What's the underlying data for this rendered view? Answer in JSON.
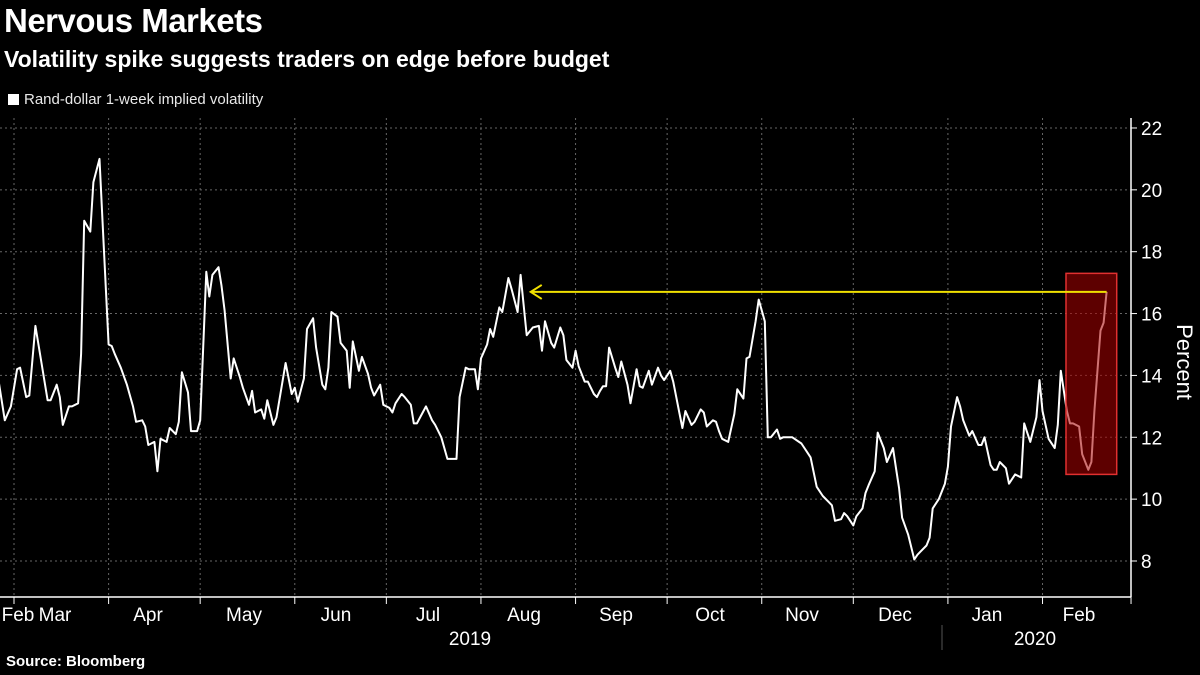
{
  "title": "Nervous Markets",
  "subtitle": "Volatility spike suggests traders on edge before budget",
  "source": "Source: Bloomberg",
  "colors": {
    "background": "#000000",
    "line": "#ffffff",
    "arrow": "#f0e000",
    "highlight_fill": "#8b0000",
    "highlight_border": "#e03030",
    "grid": "#666666"
  },
  "chart_data": {
    "type": "line",
    "title": "Nervous Markets",
    "subtitle": "Volatility spike suggests traders on edge before budget",
    "ylabel": "Percent",
    "ylim": [
      7,
      22.3
    ],
    "y_ticks": [
      8,
      10,
      12,
      14,
      16,
      18,
      20,
      22
    ],
    "y_axis_side": "right",
    "x_tick_labels": [
      "Feb",
      "Mar",
      "Apr",
      "May",
      "Jun",
      "Jul",
      "Aug",
      "Sep",
      "Oct",
      "Nov",
      "Dec",
      "Jan",
      "Feb"
    ],
    "x_year_labels": [
      "2019",
      "2020"
    ],
    "grid": true,
    "legend_position": "top-left",
    "series": [
      {
        "name": "Rand-dollar 1-week implied volatility",
        "points": [
          [
            "2019-02-24",
            13.8
          ],
          [
            "2019-02-26",
            12.55
          ],
          [
            "2019-02-28",
            13.0
          ],
          [
            "2019-03-01",
            13.6
          ],
          [
            "2019-03-02",
            14.2
          ],
          [
            "2019-03-03",
            14.25
          ],
          [
            "2019-03-05",
            13.3
          ],
          [
            "2019-03-06",
            13.35
          ],
          [
            "2019-03-08",
            15.6
          ],
          [
            "2019-03-10",
            14.4
          ],
          [
            "2019-03-12",
            13.2
          ],
          [
            "2019-03-13",
            13.2
          ],
          [
            "2019-03-15",
            13.7
          ],
          [
            "2019-03-16",
            13.3
          ],
          [
            "2019-03-17",
            12.4
          ],
          [
            "2019-03-19",
            13.0
          ],
          [
            "2019-03-20",
            13.0
          ],
          [
            "2019-03-22",
            13.1
          ],
          [
            "2019-03-23",
            14.7
          ],
          [
            "2019-03-24",
            19.0
          ],
          [
            "2019-03-26",
            18.65
          ],
          [
            "2019-03-27",
            20.25
          ],
          [
            "2019-03-29",
            21.0
          ],
          [
            "2019-03-30",
            19.0
          ],
          [
            "2019-04-01",
            15.0
          ],
          [
            "2019-04-02",
            14.95
          ],
          [
            "2019-04-03",
            14.7
          ],
          [
            "2019-04-05",
            14.25
          ],
          [
            "2019-04-07",
            13.7
          ],
          [
            "2019-04-09",
            13.0
          ],
          [
            "2019-04-10",
            12.5
          ],
          [
            "2019-04-12",
            12.55
          ],
          [
            "2019-04-13",
            12.35
          ],
          [
            "2019-04-14",
            11.75
          ],
          [
            "2019-04-16",
            11.85
          ],
          [
            "2019-04-17",
            10.9
          ],
          [
            "2019-04-18",
            11.95
          ],
          [
            "2019-04-20",
            11.85
          ],
          [
            "2019-04-21",
            12.3
          ],
          [
            "2019-04-23",
            12.1
          ],
          [
            "2019-04-24",
            12.5
          ],
          [
            "2019-04-25",
            14.1
          ],
          [
            "2019-04-27",
            13.45
          ],
          [
            "2019-04-28",
            12.2
          ],
          [
            "2019-04-30",
            12.2
          ],
          [
            "2019-05-01",
            12.55
          ],
          [
            "2019-05-03",
            17.35
          ],
          [
            "2019-05-04",
            16.55
          ],
          [
            "2019-05-05",
            17.25
          ],
          [
            "2019-05-07",
            17.5
          ],
          [
            "2019-05-08",
            16.9
          ],
          [
            "2019-05-09",
            16.1
          ],
          [
            "2019-05-11",
            13.9
          ],
          [
            "2019-05-12",
            14.55
          ],
          [
            "2019-05-14",
            13.95
          ],
          [
            "2019-05-15",
            13.6
          ],
          [
            "2019-05-17",
            13.05
          ],
          [
            "2019-05-18",
            13.5
          ],
          [
            "2019-05-19",
            12.8
          ],
          [
            "2019-05-21",
            12.9
          ],
          [
            "2019-05-22",
            12.6
          ],
          [
            "2019-05-23",
            13.2
          ],
          [
            "2019-05-25",
            12.4
          ],
          [
            "2019-05-26",
            12.65
          ],
          [
            "2019-05-29",
            14.4
          ],
          [
            "2019-05-31",
            13.4
          ],
          [
            "2019-06-01",
            13.6
          ],
          [
            "2019-06-02",
            13.15
          ],
          [
            "2019-06-04",
            13.9
          ],
          [
            "2019-06-05",
            15.5
          ],
          [
            "2019-06-07",
            15.85
          ],
          [
            "2019-06-08",
            14.9
          ],
          [
            "2019-06-10",
            13.7
          ],
          [
            "2019-06-11",
            13.55
          ],
          [
            "2019-06-12",
            14.25
          ],
          [
            "2019-06-13",
            16.05
          ],
          [
            "2019-06-15",
            15.9
          ],
          [
            "2019-06-16",
            15.05
          ],
          [
            "2019-06-18",
            14.8
          ],
          [
            "2019-06-19",
            13.6
          ],
          [
            "2019-06-20",
            15.1
          ],
          [
            "2019-06-22",
            14.15
          ],
          [
            "2019-06-23",
            14.6
          ],
          [
            "2019-06-25",
            14.05
          ],
          [
            "2019-06-26",
            13.6
          ],
          [
            "2019-06-27",
            13.35
          ],
          [
            "2019-06-29",
            13.7
          ],
          [
            "2019-06-30",
            13.05
          ],
          [
            "2019-07-02",
            12.95
          ],
          [
            "2019-07-03",
            12.8
          ],
          [
            "2019-07-04",
            13.1
          ],
          [
            "2019-07-06",
            13.4
          ],
          [
            "2019-07-07",
            13.3
          ],
          [
            "2019-07-09",
            13.05
          ],
          [
            "2019-07-10",
            12.45
          ],
          [
            "2019-07-11",
            12.45
          ],
          [
            "2019-07-14",
            13.0
          ],
          [
            "2019-07-16",
            12.55
          ],
          [
            "2019-07-17",
            12.4
          ],
          [
            "2019-07-19",
            12.0
          ],
          [
            "2019-07-21",
            11.3
          ],
          [
            "2019-07-24",
            11.3
          ],
          [
            "2019-07-25",
            13.3
          ],
          [
            "2019-07-27",
            14.25
          ],
          [
            "2019-07-28",
            14.2
          ],
          [
            "2019-07-30",
            14.2
          ],
          [
            "2019-07-31",
            13.55
          ],
          [
            "2019-08-01",
            14.55
          ],
          [
            "2019-08-03",
            15.0
          ],
          [
            "2019-08-04",
            15.5
          ],
          [
            "2019-08-05",
            15.25
          ],
          [
            "2019-08-07",
            16.2
          ],
          [
            "2019-08-08",
            16.05
          ],
          [
            "2019-08-10",
            17.15
          ],
          [
            "2019-08-11",
            16.8
          ],
          [
            "2019-08-13",
            16.05
          ],
          [
            "2019-08-14",
            17.25
          ],
          [
            "2019-08-16",
            15.3
          ],
          [
            "2019-08-18",
            15.55
          ],
          [
            "2019-08-20",
            15.6
          ],
          [
            "2019-08-21",
            14.8
          ],
          [
            "2019-08-22",
            15.75
          ],
          [
            "2019-08-24",
            15.05
          ],
          [
            "2019-08-25",
            14.9
          ],
          [
            "2019-08-27",
            15.55
          ],
          [
            "2019-08-28",
            15.3
          ],
          [
            "2019-08-29",
            14.5
          ],
          [
            "2019-08-31",
            14.25
          ],
          [
            "2019-09-01",
            14.8
          ],
          [
            "2019-09-02",
            14.3
          ],
          [
            "2019-09-04",
            13.8
          ],
          [
            "2019-09-05",
            13.8
          ],
          [
            "2019-09-07",
            13.4
          ],
          [
            "2019-09-08",
            13.3
          ],
          [
            "2019-09-09",
            13.5
          ],
          [
            "2019-09-10",
            13.65
          ],
          [
            "2019-09-11",
            13.65
          ],
          [
            "2019-09-12",
            14.9
          ],
          [
            "2019-09-14",
            14.25
          ],
          [
            "2019-09-15",
            13.95
          ],
          [
            "2019-09-16",
            14.45
          ],
          [
            "2019-09-18",
            13.7
          ],
          [
            "2019-09-19",
            13.1
          ],
          [
            "2019-09-21",
            14.2
          ],
          [
            "2019-09-22",
            13.65
          ],
          [
            "2019-09-23",
            13.6
          ],
          [
            "2019-09-25",
            14.15
          ],
          [
            "2019-09-26",
            13.7
          ],
          [
            "2019-09-28",
            14.25
          ],
          [
            "2019-09-29",
            14.0
          ],
          [
            "2019-09-30",
            13.85
          ],
          [
            "2019-10-02",
            14.15
          ],
          [
            "2019-10-03",
            13.8
          ],
          [
            "2019-10-05",
            12.8
          ],
          [
            "2019-10-06",
            12.3
          ],
          [
            "2019-10-07",
            12.85
          ],
          [
            "2019-10-09",
            12.4
          ],
          [
            "2019-10-10",
            12.5
          ],
          [
            "2019-10-12",
            12.9
          ],
          [
            "2019-10-13",
            12.8
          ],
          [
            "2019-10-14",
            12.35
          ],
          [
            "2019-10-16",
            12.55
          ],
          [
            "2019-10-17",
            12.5
          ],
          [
            "2019-10-18",
            12.2
          ],
          [
            "2019-10-19",
            11.95
          ],
          [
            "2019-10-21",
            11.85
          ],
          [
            "2019-10-23",
            12.75
          ],
          [
            "2019-10-24",
            13.55
          ],
          [
            "2019-10-26",
            13.25
          ],
          [
            "2019-10-27",
            14.55
          ],
          [
            "2019-10-28",
            14.6
          ],
          [
            "2019-10-30",
            15.75
          ],
          [
            "2019-10-31",
            16.45
          ],
          [
            "2019-11-02",
            15.75
          ],
          [
            "2019-11-03",
            12.0
          ],
          [
            "2019-11-04",
            12.0
          ],
          [
            "2019-11-06",
            12.25
          ],
          [
            "2019-11-07",
            11.95
          ],
          [
            "2019-11-08",
            12.0
          ],
          [
            "2019-11-11",
            12.0
          ],
          [
            "2019-11-14",
            11.8
          ],
          [
            "2019-11-16",
            11.5
          ],
          [
            "2019-11-17",
            11.35
          ],
          [
            "2019-11-19",
            10.4
          ],
          [
            "2019-11-21",
            10.1
          ],
          [
            "2019-11-23",
            9.9
          ],
          [
            "2019-11-24",
            9.8
          ],
          [
            "2019-11-25",
            9.3
          ],
          [
            "2019-11-27",
            9.35
          ],
          [
            "2019-11-28",
            9.55
          ],
          [
            "2019-11-29",
            9.45
          ],
          [
            "2019-12-01",
            9.15
          ],
          [
            "2019-12-02",
            9.45
          ],
          [
            "2019-12-04",
            9.7
          ],
          [
            "2019-12-05",
            10.2
          ],
          [
            "2019-12-06",
            10.45
          ],
          [
            "2019-12-08",
            10.9
          ],
          [
            "2019-12-09",
            12.15
          ],
          [
            "2019-12-11",
            11.65
          ],
          [
            "2019-12-12",
            11.2
          ],
          [
            "2019-12-14",
            11.65
          ],
          [
            "2019-12-15",
            11.0
          ],
          [
            "2019-12-16",
            10.35
          ],
          [
            "2019-12-17",
            9.4
          ],
          [
            "2019-12-19",
            8.85
          ],
          [
            "2019-12-21",
            8.05
          ],
          [
            "2019-12-22",
            8.2
          ],
          [
            "2019-12-23",
            8.3
          ],
          [
            "2019-12-25",
            8.5
          ],
          [
            "2019-12-26",
            8.75
          ],
          [
            "2019-12-27",
            9.7
          ],
          [
            "2019-12-29",
            10.0
          ],
          [
            "2019-12-31",
            10.5
          ],
          [
            "2020-01-01",
            11.05
          ],
          [
            "2020-01-02",
            12.35
          ],
          [
            "2020-01-04",
            13.3
          ],
          [
            "2020-01-05",
            13.0
          ],
          [
            "2020-01-06",
            12.55
          ],
          [
            "2020-01-08",
            12.05
          ],
          [
            "2020-01-09",
            12.2
          ],
          [
            "2020-01-11",
            11.75
          ],
          [
            "2020-01-12",
            11.75
          ],
          [
            "2020-01-13",
            12.0
          ],
          [
            "2020-01-15",
            11.1
          ],
          [
            "2020-01-16",
            10.95
          ],
          [
            "2020-01-17",
            10.95
          ],
          [
            "2020-01-18",
            11.2
          ],
          [
            "2020-01-20",
            11.0
          ],
          [
            "2020-01-21",
            10.5
          ],
          [
            "2020-01-23",
            10.8
          ],
          [
            "2020-01-25",
            10.7
          ],
          [
            "2020-01-26",
            12.45
          ],
          [
            "2020-01-28",
            11.85
          ],
          [
            "2020-01-30",
            12.65
          ],
          [
            "2020-01-31",
            13.85
          ],
          [
            "2020-02-01",
            12.85
          ],
          [
            "2020-02-03",
            11.95
          ],
          [
            "2020-02-05",
            11.65
          ],
          [
            "2020-02-06",
            12.4
          ],
          [
            "2020-02-07",
            14.15
          ],
          [
            "2020-02-09",
            12.85
          ],
          [
            "2020-02-10",
            12.45
          ],
          [
            "2020-02-11",
            12.45
          ],
          [
            "2020-02-13",
            12.35
          ],
          [
            "2020-02-14",
            11.45
          ],
          [
            "2020-02-16",
            10.95
          ],
          [
            "2020-02-17",
            11.2
          ],
          [
            "2020-02-18",
            12.85
          ],
          [
            "2020-02-20",
            15.45
          ],
          [
            "2020-02-21",
            15.7
          ],
          [
            "2020-02-22",
            16.7
          ]
        ]
      }
    ],
    "annotations": [
      {
        "type": "arrow",
        "description_value": 16.7,
        "from": "2020-02-22",
        "to": "2019-08-16"
      },
      {
        "type": "highlight-box",
        "from": "2020-02-10",
        "to": "2020-02-24",
        "ymin": 10.8,
        "ymax": 17.3
      }
    ]
  }
}
